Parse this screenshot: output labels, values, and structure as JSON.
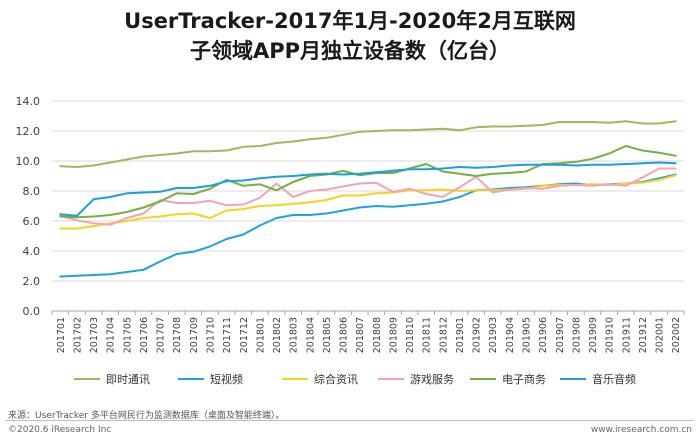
{
  "page": {
    "title_line1": "UserTracker-2017年1月-2020年2月互联网",
    "title_line2": "子领域APP月独立设备数（亿台）",
    "source": "来源：UserTracker 多平台网民行为监测数据库（桌面及智能终端）。",
    "copyright": "©2020.6 iResearch Inc",
    "url": "www.iresearch.com.cn"
  },
  "chart_data": {
    "type": "line",
    "x": [
      "201701",
      "201702",
      "201703",
      "201704",
      "201705",
      "201706",
      "201707",
      "201708",
      "201709",
      "201710",
      "201711",
      "201712",
      "201801",
      "201802",
      "201803",
      "201804",
      "201805",
      "201806",
      "201807",
      "201808",
      "201809",
      "201810",
      "201811",
      "201812",
      "201901",
      "201902",
      "201903",
      "201904",
      "201905",
      "201906",
      "201907",
      "201908",
      "201909",
      "201910",
      "201911",
      "201912",
      "202001",
      "202002"
    ],
    "yticks": [
      "0.0",
      "2.0",
      "4.0",
      "6.0",
      "8.0",
      "10.0",
      "12.0",
      "14.0"
    ],
    "ylim": [
      0,
      14
    ],
    "grid": true,
    "legend_position": "bottom",
    "series": [
      {
        "name": "即时通讯",
        "color": "#9bbb59",
        "values": [
          9.65,
          9.6,
          9.7,
          9.9,
          10.1,
          10.3,
          10.4,
          10.5,
          10.65,
          10.65,
          10.7,
          10.95,
          11.0,
          11.2,
          11.3,
          11.45,
          11.55,
          11.75,
          11.95,
          12.0,
          12.05,
          12.05,
          12.1,
          12.15,
          12.05,
          12.25,
          12.3,
          12.3,
          12.35,
          12.4,
          12.6,
          12.6,
          12.6,
          12.55,
          12.65,
          12.5,
          12.5,
          12.65
        ]
      },
      {
        "name": "短视频",
        "color": "#1fa3e0",
        "values": [
          2.3,
          2.35,
          2.4,
          2.45,
          2.6,
          2.75,
          3.3,
          3.8,
          3.95,
          4.3,
          4.8,
          5.1,
          5.7,
          6.2,
          6.4,
          6.4,
          6.5,
          6.7,
          6.9,
          7.0,
          6.95,
          7.05,
          7.15,
          7.3,
          7.6,
          8.05,
          8.1,
          8.2,
          8.25,
          8.35,
          8.45,
          8.5,
          8.4,
          8.45,
          8.5,
          8.6,
          8.85,
          9.1
        ]
      },
      {
        "name": "综合资讯",
        "color": "#f7d21e",
        "values": [
          5.5,
          5.5,
          5.65,
          5.85,
          6.0,
          6.2,
          6.3,
          6.45,
          6.5,
          6.2,
          6.7,
          6.8,
          7.0,
          7.05,
          7.15,
          7.25,
          7.4,
          7.7,
          7.7,
          7.85,
          7.9,
          8.05,
          8.05,
          8.1,
          8.0,
          8.05,
          8.05,
          8.1,
          8.15,
          8.35,
          8.4,
          8.4,
          8.45,
          8.4,
          8.5,
          8.55,
          8.75,
          9.05
        ]
      },
      {
        "name": "游戏服务",
        "color": "#f4a3b0",
        "values": [
          6.35,
          6.05,
          5.85,
          5.75,
          6.2,
          6.5,
          7.4,
          7.2,
          7.2,
          7.35,
          7.05,
          7.1,
          7.55,
          8.5,
          7.6,
          8.0,
          8.1,
          8.3,
          8.5,
          8.55,
          7.95,
          8.15,
          7.8,
          7.6,
          8.25,
          8.95,
          7.9,
          8.1,
          8.2,
          8.15,
          8.35,
          8.4,
          8.35,
          8.45,
          8.35,
          8.9,
          9.5,
          9.5
        ]
      },
      {
        "name": "电子商务",
        "color": "#74b03e",
        "values": [
          6.3,
          6.25,
          6.3,
          6.4,
          6.6,
          6.9,
          7.3,
          7.85,
          7.8,
          8.15,
          8.75,
          8.35,
          8.45,
          8.05,
          8.6,
          9.0,
          9.1,
          9.35,
          9.05,
          9.2,
          9.2,
          9.5,
          9.8,
          9.3,
          9.15,
          9.0,
          9.15,
          9.2,
          9.3,
          9.8,
          9.85,
          9.95,
          10.15,
          10.5,
          11.0,
          10.7,
          10.55,
          10.35
        ]
      },
      {
        "name": "音乐音频",
        "color": "#1aa0de",
        "values": [
          6.45,
          6.35,
          7.45,
          7.6,
          7.85,
          7.9,
          7.95,
          8.2,
          8.2,
          8.35,
          8.65,
          8.7,
          8.85,
          8.95,
          9.0,
          9.1,
          9.15,
          9.1,
          9.15,
          9.25,
          9.35,
          9.45,
          9.45,
          9.5,
          9.6,
          9.55,
          9.6,
          9.7,
          9.75,
          9.75,
          9.75,
          9.7,
          9.75,
          9.75,
          9.8,
          9.85,
          9.9,
          9.85
        ]
      }
    ]
  }
}
